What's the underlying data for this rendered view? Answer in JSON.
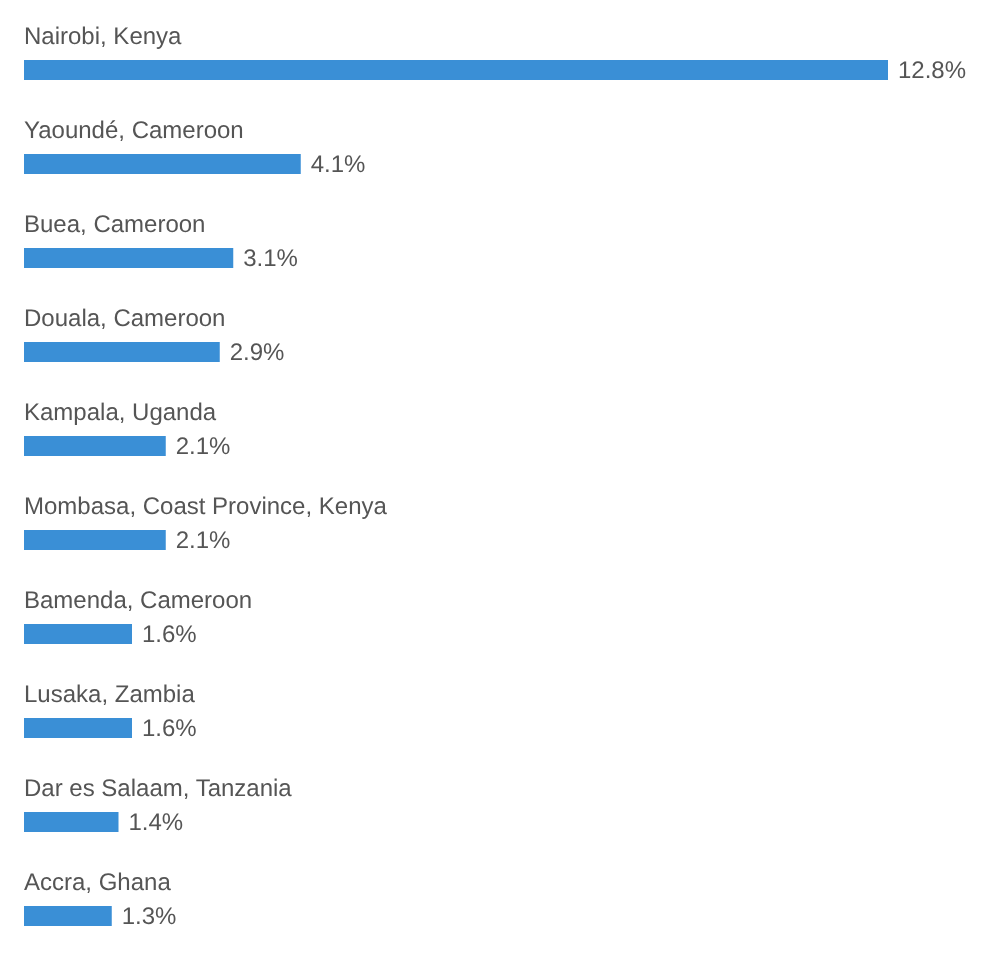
{
  "chart_data": {
    "type": "bar",
    "orientation": "horizontal",
    "categories": [
      "Nairobi, Kenya",
      "Yaoundé, Cameroon",
      "Buea, Cameroon",
      "Douala, Cameroon",
      "Kampala, Uganda",
      "Mombasa, Coast Province, Kenya",
      "Bamenda, Cameroon",
      "Lusaka, Zambia",
      "Dar es Salaam, Tanzania",
      "Accra, Ghana"
    ],
    "values": [
      12.8,
      4.1,
      3.1,
      2.9,
      2.1,
      2.1,
      1.6,
      1.6,
      1.4,
      1.3
    ],
    "value_labels": [
      "12.8%",
      "4.1%",
      "3.1%",
      "2.9%",
      "2.1%",
      "2.1%",
      "1.6%",
      "1.6%",
      "1.4%",
      "1.3%"
    ],
    "color": "#3a8fd6"
  }
}
